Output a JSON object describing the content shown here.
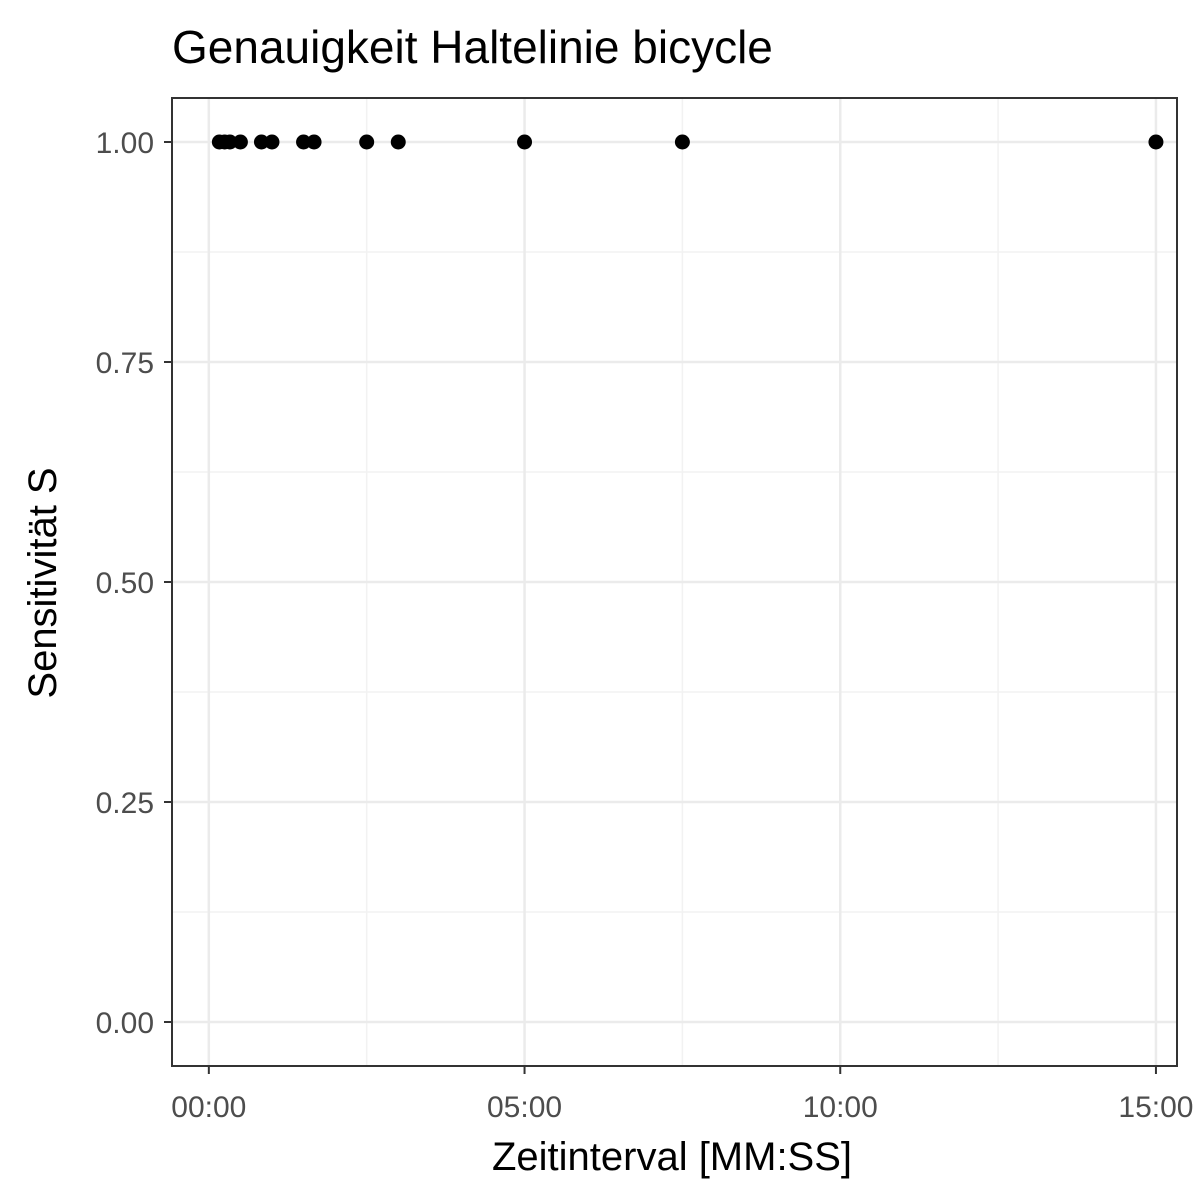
{
  "chart_data": {
    "type": "scatter",
    "title": "Genauigkeit Haltelinie bicycle",
    "xlabel": "Zeitinterval [MM:SS]",
    "ylabel": "Sensitivität S",
    "x_unit": "seconds",
    "xlim": [
      -35,
      920
    ],
    "ylim": [
      -0.05,
      1.05
    ],
    "x_ticks": [
      {
        "value": 0,
        "label": "00:00"
      },
      {
        "value": 300,
        "label": "05:00"
      },
      {
        "value": 600,
        "label": "10:00"
      },
      {
        "value": 900,
        "label": "15:00"
      }
    ],
    "y_ticks": [
      {
        "value": 0.0,
        "label": "0.00"
      },
      {
        "value": 0.25,
        "label": "0.25"
      },
      {
        "value": 0.5,
        "label": "0.50"
      },
      {
        "value": 0.75,
        "label": "0.75"
      },
      {
        "value": 1.0,
        "label": "1.00"
      }
    ],
    "grid": true,
    "points": [
      {
        "x": 10,
        "y": 1.0
      },
      {
        "x": 15,
        "y": 1.0
      },
      {
        "x": 20,
        "y": 1.0
      },
      {
        "x": 30,
        "y": 1.0
      },
      {
        "x": 50,
        "y": 1.0
      },
      {
        "x": 60,
        "y": 1.0
      },
      {
        "x": 90,
        "y": 1.0
      },
      {
        "x": 100,
        "y": 1.0
      },
      {
        "x": 150,
        "y": 1.0
      },
      {
        "x": 180,
        "y": 1.0
      },
      {
        "x": 300,
        "y": 1.0
      },
      {
        "x": 450,
        "y": 1.0
      },
      {
        "x": 900,
        "y": 1.0
      }
    ],
    "colors": {
      "point": "#000000",
      "grid_major": "#ebebeb",
      "grid_minor": "#f2f2f2",
      "panel_border": "#333333",
      "tick_label": "#4d4d4d"
    }
  }
}
